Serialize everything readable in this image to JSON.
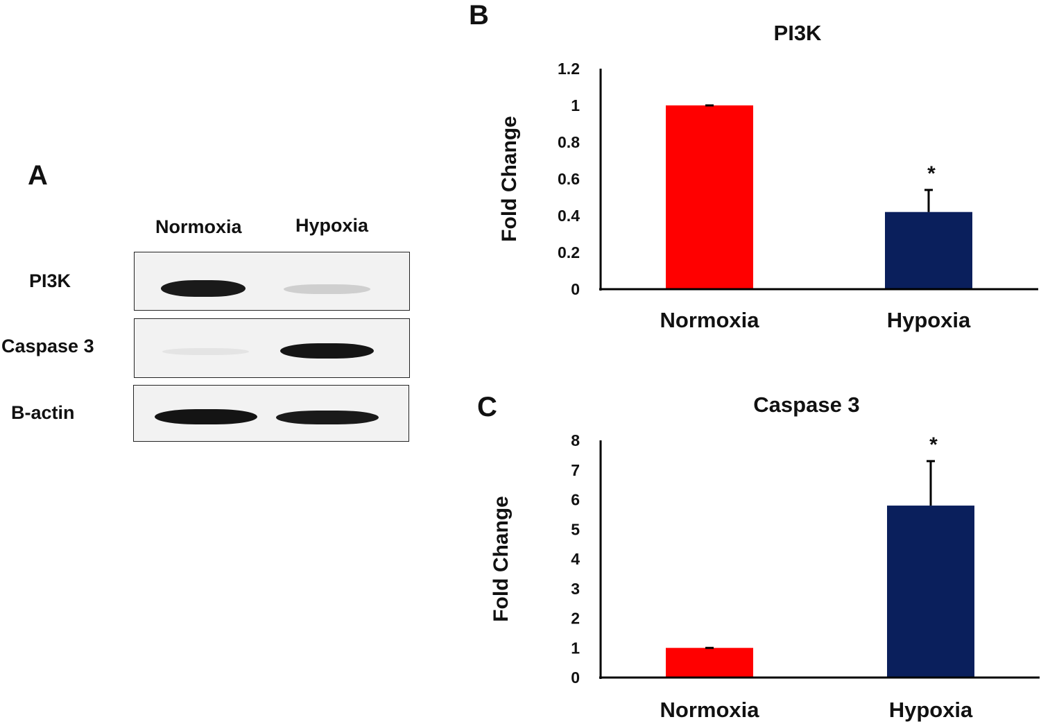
{
  "panels": {
    "a": "A",
    "b": "B",
    "c": "C"
  },
  "blot": {
    "lanes": [
      "Normoxia",
      "Hypoxia"
    ],
    "rows": [
      {
        "label": "PI3K"
      },
      {
        "label": "Caspase 3"
      },
      {
        "label": "B-actin"
      }
    ]
  },
  "colors": {
    "normoxia": "#ff0000",
    "hypoxia": "#0a1f5c",
    "axis": "#000000"
  },
  "chart_data": [
    {
      "type": "bar",
      "title": "PI3K",
      "ylabel": "Fold Change",
      "xlabel": "",
      "categories": [
        "Normoxia",
        "Hypoxia"
      ],
      "values": [
        1.0,
        0.42
      ],
      "error": [
        0.0,
        0.12
      ],
      "significance": [
        "",
        "*"
      ],
      "ylim": [
        0,
        1.2
      ],
      "yticks": [
        "0",
        "0.2",
        "0.4",
        "0.6",
        "0.8",
        "1",
        "1.2"
      ],
      "colors": [
        "#ff0000",
        "#0a1f5c"
      ],
      "grid": false
    },
    {
      "type": "bar",
      "title": "Caspase 3",
      "ylabel": "Fold Change",
      "xlabel": "",
      "categories": [
        "Normoxia",
        "Hypoxia"
      ],
      "values": [
        1.0,
        5.8
      ],
      "error": [
        0.0,
        1.5
      ],
      "significance": [
        "",
        "*"
      ],
      "ylim": [
        0,
        8
      ],
      "yticks": [
        "0",
        "1",
        "2",
        "3",
        "4",
        "5",
        "6",
        "7",
        "8"
      ],
      "colors": [
        "#ff0000",
        "#0a1f5c"
      ],
      "grid": false
    }
  ]
}
